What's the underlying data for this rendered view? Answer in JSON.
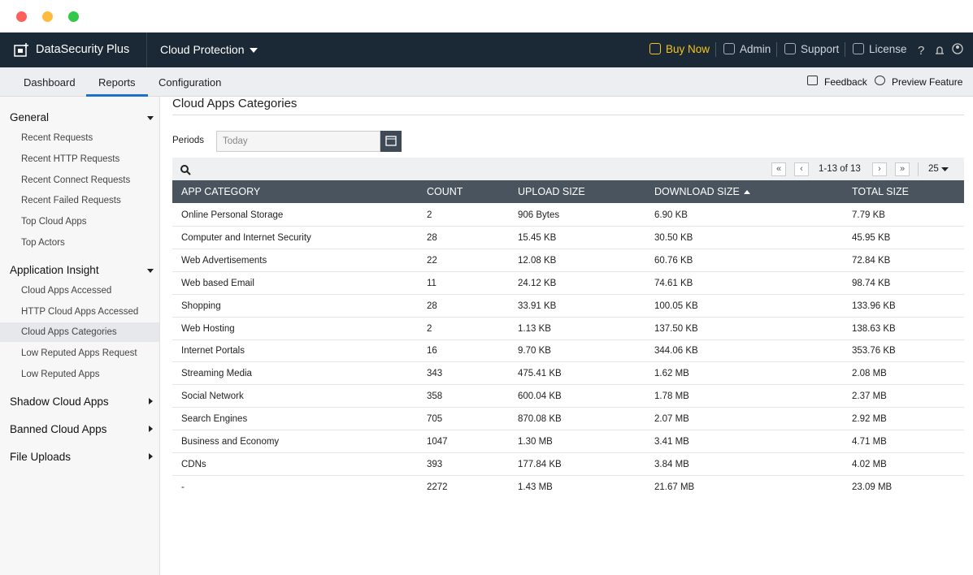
{
  "app": {
    "name": "DataSecurity Plus",
    "module": "Cloud Protection"
  },
  "top_nav": [
    "Buy Now",
    "Admin",
    "Support",
    "License"
  ],
  "tabs": [
    "Dashboard",
    "Reports",
    "Configuration"
  ],
  "tab_actions": [
    "Feedback",
    "Preview Feature"
  ],
  "sidebar": [
    {
      "title": "General",
      "items": [
        "Recent Requests",
        "Recent HTTP Requests",
        "Recent Connect Requests",
        "Recent Failed Requests",
        "Top Cloud Apps",
        "Top Actors"
      ]
    },
    {
      "title": "Application Insight",
      "items": [
        "Cloud Apps Accessed",
        "HTTP Cloud Apps Accessed",
        "Cloud Apps Categories",
        "Low Reputed Apps Request",
        "Low Reputed Apps"
      ]
    },
    {
      "title": "Shadow Cloud Apps",
      "items": []
    },
    {
      "title": "Banned Cloud Apps",
      "items": []
    },
    {
      "title": "File Uploads",
      "items": []
    }
  ],
  "page": {
    "title": "Cloud Apps Categories",
    "period_label": "Periods",
    "period_value": "Today",
    "pagination": "1-13 of 13",
    "page_size": "25"
  },
  "table": {
    "columns": [
      "APP CATEGORY",
      "COUNT",
      "UPLOAD SIZE",
      "DOWNLOAD SIZE",
      "TOTAL SIZE"
    ],
    "rows": [
      [
        "Online Personal Storage",
        "2",
        "906 Bytes",
        "6.90 KB",
        "7.79 KB"
      ],
      [
        "Computer and Internet Security",
        "28",
        "15.45 KB",
        "30.50 KB",
        "45.95 KB"
      ],
      [
        "Web Advertisements",
        "22",
        "12.08 KB",
        "60.76 KB",
        "72.84 KB"
      ],
      [
        "Web based Email",
        "11",
        "24.12 KB",
        "74.61 KB",
        "98.74 KB"
      ],
      [
        "Shopping",
        "28",
        "33.91 KB",
        "100.05 KB",
        "133.96 KB"
      ],
      [
        "Web Hosting",
        "2",
        "1.13 KB",
        "137.50 KB",
        "138.63 KB"
      ],
      [
        "Internet Portals",
        "16",
        "9.70 KB",
        "344.06 KB",
        "353.76 KB"
      ],
      [
        "Streaming Media",
        "343",
        "475.41 KB",
        "1.62 MB",
        "2.08 MB"
      ],
      [
        "Social Network",
        "358",
        "600.04 KB",
        "1.78 MB",
        "2.37 MB"
      ],
      [
        "Search Engines",
        "705",
        "870.08 KB",
        "2.07 MB",
        "2.92 MB"
      ],
      [
        "Business and Economy",
        "1047",
        "1.30 MB",
        "3.41 MB",
        "4.71 MB"
      ],
      [
        "CDNs",
        "393",
        "177.84 KB",
        "3.84 MB",
        "4.02 MB"
      ],
      [
        "-",
        "2272",
        "1.43 MB",
        "21.67 MB",
        "23.09 MB"
      ]
    ]
  }
}
